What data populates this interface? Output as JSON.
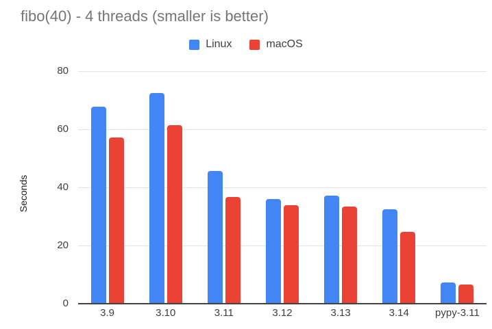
{
  "title": "fibo(40) - 4 threads (smaller is better)",
  "ylabel": "Seconds",
  "legend": {
    "items": [
      {
        "label": "Linux",
        "color": "#4285F4"
      },
      {
        "label": "macOS",
        "color": "#EA4335"
      }
    ]
  },
  "colors": {
    "linux": "#4285F4",
    "macos": "#EA4335",
    "title_text": "#757575",
    "axis_text": "#3c4043",
    "gridline": "#e3e3e3",
    "baseline": "#424242"
  },
  "chart_data": {
    "type": "bar",
    "title": "fibo(40) - 4 threads (smaller is better)",
    "xlabel": "",
    "ylabel": "Seconds",
    "categories": [
      "3.9",
      "3.10",
      "3.11",
      "3.12",
      "3.13",
      "3.14",
      "pypy-3.11"
    ],
    "series": [
      {
        "name": "Linux",
        "color": "#4285F4",
        "values": [
          67.8,
          72.4,
          45.6,
          36.1,
          37.1,
          32.5,
          7.2
        ]
      },
      {
        "name": "macOS",
        "color": "#EA4335",
        "values": [
          57.2,
          61.5,
          36.8,
          34.0,
          33.3,
          24.8,
          6.5
        ]
      }
    ],
    "ylim": [
      0,
      80
    ],
    "yticks": [
      0,
      20,
      40,
      60,
      80
    ],
    "grid": true,
    "legend_position": "top-center"
  }
}
